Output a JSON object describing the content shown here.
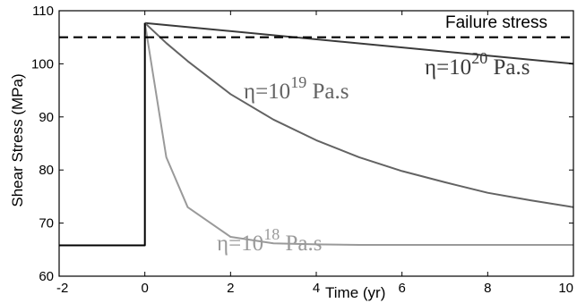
{
  "chart_data": {
    "type": "line",
    "xlabel": "Time (yr)",
    "ylabel": "Shear Stress (MPa)",
    "xlim": [
      -2,
      10
    ],
    "ylim": [
      60,
      110
    ],
    "xticks": [
      -2,
      0,
      2,
      4,
      6,
      8,
      10
    ],
    "yticks": [
      60,
      70,
      80,
      90,
      100,
      110
    ],
    "grid": false,
    "reference_line": {
      "label": "Failure stress",
      "y": 105,
      "style": "dashed",
      "color": "#000000"
    },
    "series": [
      {
        "name": "η=10^20 Pa.s",
        "color": "#3a3a3a",
        "label_parts": {
          "prefix": "η=10",
          "exponent": "20",
          "suffix": " Pa.s"
        },
        "x": [
          0,
          10
        ],
        "y": [
          107.7,
          100
        ]
      },
      {
        "name": "η=10^19 Pa.s",
        "color": "#636363",
        "label_parts": {
          "prefix": "η=10",
          "exponent": "19",
          "suffix": " Pa.s"
        },
        "x": [
          0,
          0.5,
          1,
          2,
          3,
          4,
          5,
          6,
          7,
          8,
          9,
          10
        ],
        "y": [
          107.7,
          103.9,
          100.5,
          94.3,
          89.5,
          85.6,
          82.4,
          79.8,
          77.7,
          75.7,
          74.3,
          73.0
        ]
      },
      {
        "name": "η=10^18 Pa.s",
        "color": "#9a9a9a",
        "label_parts": {
          "prefix": "η=10",
          "exponent": "18",
          "suffix": " Pa.s"
        },
        "x": [
          0,
          0.5,
          1,
          2,
          3,
          4,
          5,
          6,
          7,
          8,
          9,
          10
        ],
        "y": [
          107.7,
          82.4,
          73.0,
          67.4,
          66.2,
          66.0,
          65.9,
          65.9,
          65.9,
          65.9,
          65.9,
          65.9
        ]
      },
      {
        "name": "",
        "color": "#000000",
        "x": [
          -2,
          0,
          0
        ],
        "y": [
          65.8,
          65.8,
          107.7
        ]
      }
    ]
  }
}
